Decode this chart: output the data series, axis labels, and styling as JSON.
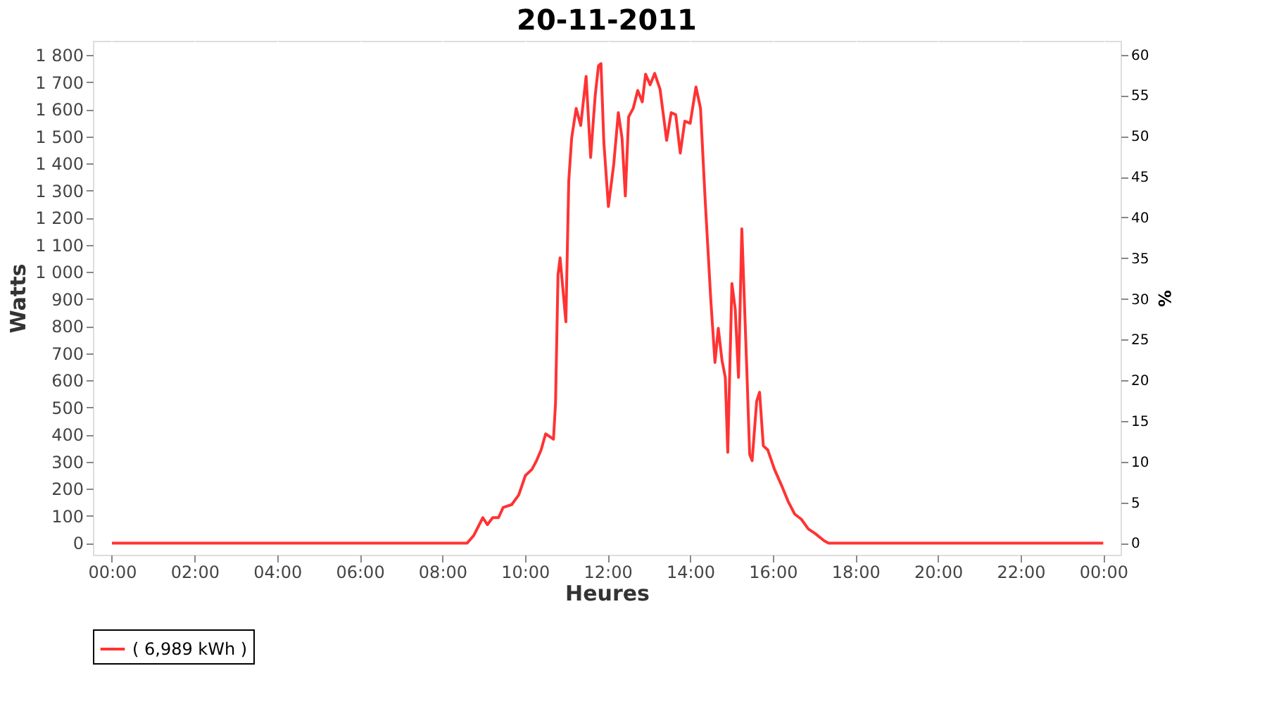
{
  "chart_data": {
    "type": "line",
    "title": "20-11-2011",
    "xlabel": "Heures",
    "ylabel": "Watts",
    "y2label": "%",
    "xlim": [
      -0.46,
      24.42
    ],
    "ylim": [
      -43,
      1852
    ],
    "y2lim": [
      -1.43,
      61.7
    ],
    "xticks": [
      {
        "value": 0,
        "label": "00:00"
      },
      {
        "value": 2,
        "label": "02:00"
      },
      {
        "value": 4,
        "label": "04:00"
      },
      {
        "value": 6,
        "label": "06:00"
      },
      {
        "value": 8,
        "label": "08:00"
      },
      {
        "value": 10,
        "label": "10:00"
      },
      {
        "value": 12,
        "label": "12:00"
      },
      {
        "value": 14,
        "label": "14:00"
      },
      {
        "value": 16,
        "label": "16:00"
      },
      {
        "value": 18,
        "label": "18:00"
      },
      {
        "value": 20,
        "label": "20:00"
      },
      {
        "value": 22,
        "label": "22:00"
      },
      {
        "value": 24,
        "label": "00:00"
      }
    ],
    "yticks": [
      0,
      100,
      200,
      300,
      400,
      500,
      600,
      700,
      800,
      900,
      {
        "value": 1000,
        "label": "1 000"
      },
      {
        "value": 1100,
        "label": "1 100"
      },
      {
        "value": 1200,
        "label": "1 200"
      },
      {
        "value": 1300,
        "label": "1 300"
      },
      {
        "value": 1400,
        "label": "1 400"
      },
      {
        "value": 1500,
        "label": "1 500"
      },
      {
        "value": 1600,
        "label": "1 600"
      },
      {
        "value": 1700,
        "label": "1 700"
      },
      {
        "value": 1800,
        "label": "1 800"
      }
    ],
    "y2ticks": [
      0,
      5,
      10,
      15,
      20,
      25,
      30,
      35,
      40,
      45,
      50,
      55,
      60
    ],
    "grid": true,
    "legend": "bottom",
    "marker": "none",
    "line_style": "solid",
    "series": [
      {
        "name": "( 6,989 kWh )",
        "color": "#ff3333",
        "x": [
          0,
          8.6,
          8.76,
          8.98,
          9.09,
          9.22,
          9.36,
          9.47,
          9.68,
          9.85,
          10.01,
          10.17,
          10.28,
          10.39,
          10.5,
          10.69,
          10.74,
          10.8,
          10.85,
          10.99,
          11.06,
          11.13,
          11.24,
          11.35,
          11.48,
          11.59,
          11.7,
          11.78,
          11.84,
          11.91,
          12.02,
          12.15,
          12.26,
          12.35,
          12.43,
          12.51,
          12.62,
          12.73,
          12.84,
          12.92,
          13.03,
          13.14,
          13.27,
          13.43,
          13.54,
          13.65,
          13.76,
          13.87,
          14.0,
          14.14,
          14.25,
          14.36,
          14.5,
          14.6,
          14.68,
          14.77,
          14.85,
          14.91,
          15.01,
          15.09,
          15.17,
          15.25,
          15.37,
          15.44,
          15.5,
          15.61,
          15.68,
          15.77,
          15.88,
          16.04,
          16.2,
          16.37,
          16.53,
          16.69,
          16.86,
          17.02,
          17.24,
          17.35,
          24
        ],
        "values": [
          0,
          0,
          28,
          94,
          68,
          94,
          94,
          131,
          142,
          178,
          249,
          272,
          304,
          343,
          403,
          383,
          516,
          989,
          1052,
          816,
          1335,
          1493,
          1603,
          1540,
          1721,
          1422,
          1650,
          1760,
          1768,
          1477,
          1241,
          1398,
          1587,
          1493,
          1280,
          1572,
          1603,
          1669,
          1627,
          1729,
          1690,
          1732,
          1674,
          1485,
          1587,
          1580,
          1438,
          1556,
          1548,
          1682,
          1603,
          1272,
          894,
          666,
          792,
          674,
          611,
          335,
          957,
          863,
          611,
          1159,
          642,
          327,
          304,
          524,
          556,
          359,
          343,
          272,
          217,
          154,
          107,
          88,
          52,
          36,
          9,
          0,
          0
        ]
      }
    ]
  }
}
